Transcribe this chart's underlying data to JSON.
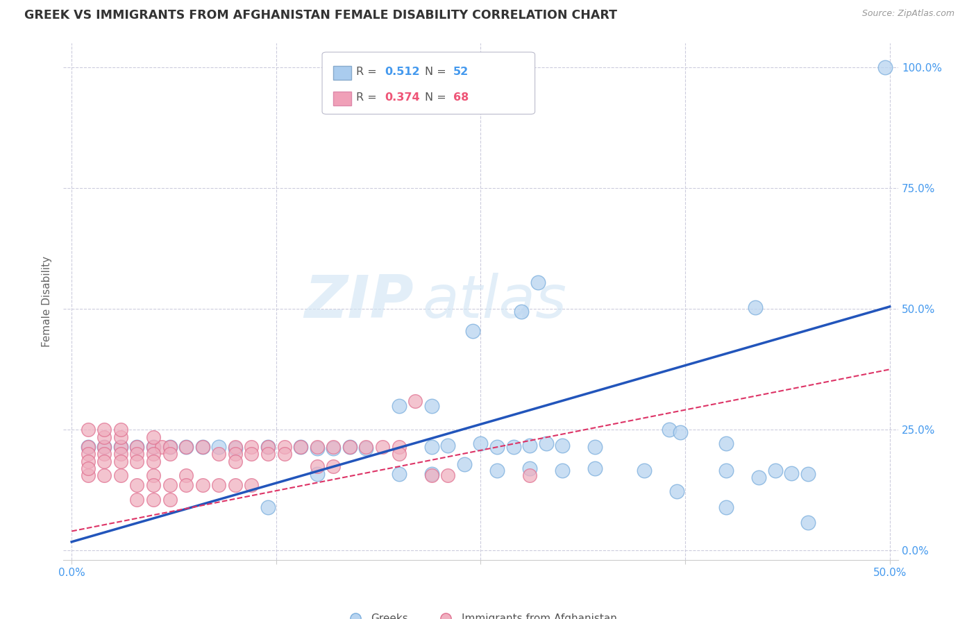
{
  "title": "GREEK VS IMMIGRANTS FROM AFGHANISTAN FEMALE DISABILITY CORRELATION CHART",
  "source": "Source: ZipAtlas.com",
  "ylabel": "Female Disability",
  "watermark": "ZIPatlas",
  "xlim": [
    -0.005,
    0.505
  ],
  "ylim": [
    -0.02,
    1.05
  ],
  "xtick_vals": [
    0.0,
    0.125,
    0.25,
    0.375,
    0.5
  ],
  "xtick_labels": [
    "0.0%",
    "",
    "",
    "",
    "50.0%"
  ],
  "ytick_vals": [
    0.0,
    0.25,
    0.5,
    0.75,
    1.0
  ],
  "ytick_labels_right": [
    "0.0%",
    "25.0%",
    "50.0%",
    "75.0%",
    "100.0%"
  ],
  "legend_color1": "#4499ee",
  "legend_color2": "#ee5577",
  "legend_fill1": "#aaccee",
  "legend_fill2": "#f0a0b8",
  "bg_color": "#ffffff",
  "grid_color": "#ccccdd",
  "title_color": "#333333",
  "tick_label_color": "#4499ee",
  "blue_line": {
    "x0": 0.0,
    "y0": 0.018,
    "x1": 0.5,
    "y1": 0.505
  },
  "pink_line": {
    "x0": 0.0,
    "y0": 0.04,
    "x1": 0.5,
    "y1": 0.375
  },
  "blue_points": [
    [
      0.497,
      1.0
    ],
    [
      0.285,
      0.555
    ],
    [
      0.275,
      0.495
    ],
    [
      0.245,
      0.455
    ],
    [
      0.365,
      0.25
    ],
    [
      0.372,
      0.245
    ],
    [
      0.418,
      0.503
    ],
    [
      0.2,
      0.3
    ],
    [
      0.22,
      0.3
    ],
    [
      0.22,
      0.215
    ],
    [
      0.23,
      0.218
    ],
    [
      0.25,
      0.222
    ],
    [
      0.26,
      0.215
    ],
    [
      0.28,
      0.218
    ],
    [
      0.29,
      0.222
    ],
    [
      0.3,
      0.218
    ],
    [
      0.32,
      0.215
    ],
    [
      0.27,
      0.215
    ],
    [
      0.1,
      0.212
    ],
    [
      0.12,
      0.215
    ],
    [
      0.14,
      0.215
    ],
    [
      0.15,
      0.212
    ],
    [
      0.16,
      0.212
    ],
    [
      0.17,
      0.215
    ],
    [
      0.18,
      0.212
    ],
    [
      0.05,
      0.215
    ],
    [
      0.06,
      0.215
    ],
    [
      0.07,
      0.215
    ],
    [
      0.08,
      0.215
    ],
    [
      0.03,
      0.215
    ],
    [
      0.02,
      0.215
    ],
    [
      0.01,
      0.215
    ],
    [
      0.04,
      0.215
    ],
    [
      0.09,
      0.215
    ],
    [
      0.2,
      0.158
    ],
    [
      0.22,
      0.158
    ],
    [
      0.24,
      0.178
    ],
    [
      0.26,
      0.165
    ],
    [
      0.28,
      0.17
    ],
    [
      0.3,
      0.165
    ],
    [
      0.32,
      0.17
    ],
    [
      0.35,
      0.165
    ],
    [
      0.37,
      0.122
    ],
    [
      0.4,
      0.165
    ],
    [
      0.42,
      0.152
    ],
    [
      0.43,
      0.165
    ],
    [
      0.44,
      0.16
    ],
    [
      0.45,
      0.158
    ],
    [
      0.4,
      0.09
    ],
    [
      0.45,
      0.058
    ],
    [
      0.4,
      0.222
    ],
    [
      0.15,
      0.158
    ],
    [
      0.12,
      0.09
    ]
  ],
  "pink_points": [
    [
      0.01,
      0.215
    ],
    [
      0.02,
      0.215
    ],
    [
      0.03,
      0.215
    ],
    [
      0.04,
      0.215
    ],
    [
      0.05,
      0.215
    ],
    [
      0.055,
      0.215
    ],
    [
      0.06,
      0.215
    ],
    [
      0.01,
      0.2
    ],
    [
      0.02,
      0.2
    ],
    [
      0.03,
      0.2
    ],
    [
      0.04,
      0.2
    ],
    [
      0.05,
      0.2
    ],
    [
      0.06,
      0.2
    ],
    [
      0.01,
      0.185
    ],
    [
      0.02,
      0.185
    ],
    [
      0.03,
      0.185
    ],
    [
      0.04,
      0.185
    ],
    [
      0.05,
      0.185
    ],
    [
      0.07,
      0.215
    ],
    [
      0.08,
      0.215
    ],
    [
      0.09,
      0.2
    ],
    [
      0.1,
      0.215
    ],
    [
      0.11,
      0.215
    ],
    [
      0.12,
      0.215
    ],
    [
      0.13,
      0.215
    ],
    [
      0.14,
      0.215
    ],
    [
      0.15,
      0.215
    ],
    [
      0.1,
      0.2
    ],
    [
      0.11,
      0.2
    ],
    [
      0.12,
      0.2
    ],
    [
      0.13,
      0.2
    ],
    [
      0.1,
      0.185
    ],
    [
      0.16,
      0.215
    ],
    [
      0.17,
      0.215
    ],
    [
      0.18,
      0.215
    ],
    [
      0.19,
      0.215
    ],
    [
      0.2,
      0.215
    ],
    [
      0.2,
      0.2
    ],
    [
      0.21,
      0.31
    ],
    [
      0.28,
      0.155
    ],
    [
      0.05,
      0.235
    ],
    [
      0.02,
      0.235
    ],
    [
      0.03,
      0.235
    ],
    [
      0.01,
      0.155
    ],
    [
      0.02,
      0.155
    ],
    [
      0.03,
      0.155
    ],
    [
      0.05,
      0.155
    ],
    [
      0.07,
      0.155
    ],
    [
      0.22,
      0.155
    ],
    [
      0.23,
      0.155
    ],
    [
      0.04,
      0.135
    ],
    [
      0.05,
      0.135
    ],
    [
      0.06,
      0.135
    ],
    [
      0.07,
      0.135
    ],
    [
      0.08,
      0.135
    ],
    [
      0.09,
      0.135
    ],
    [
      0.1,
      0.135
    ],
    [
      0.11,
      0.135
    ],
    [
      0.04,
      0.105
    ],
    [
      0.05,
      0.105
    ],
    [
      0.06,
      0.105
    ],
    [
      0.15,
      0.175
    ],
    [
      0.16,
      0.175
    ],
    [
      0.01,
      0.25
    ],
    [
      0.02,
      0.25
    ],
    [
      0.03,
      0.25
    ],
    [
      0.01,
      0.17
    ]
  ]
}
